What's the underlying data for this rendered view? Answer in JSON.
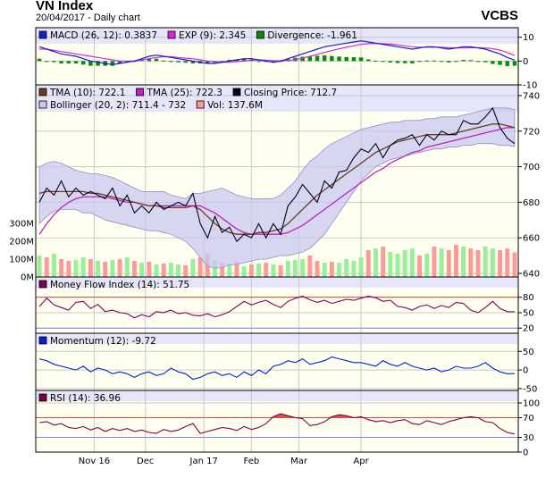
{
  "header": {
    "title": "VN Index",
    "subtitle": "20/04/2017 - Daily chart",
    "broker": "VCBS"
  },
  "colors": {
    "background": "#fffff0",
    "legend_bg": "#e6e6fa",
    "bollinger_band": "#c8c8f0",
    "macd": "#1020cc",
    "exp": "#dd22dd",
    "divergence": "#0a8a0a",
    "tma10": "#6b3b1a",
    "tma25": "#c020c0",
    "close": "#000020",
    "vol_up": "#99ee99",
    "vol_down": "#ff9999",
    "mfi": "#800060",
    "momentum": "#0020dd",
    "rsi": "#800040",
    "ref_line": "#e04040",
    "ref_line2": "#8080ff"
  },
  "chart_data": [
    {
      "type": "line",
      "panel": "macd",
      "legend": [
        {
          "label": "MACD (26, 12): 0.3837",
          "color": "#1020cc"
        },
        {
          "label": "EXP (9): 2.345",
          "color": "#dd22dd"
        },
        {
          "label": "Divergence: -1.961",
          "color": "#0a8a0a"
        }
      ],
      "yticks": [
        "10",
        "0",
        "-10"
      ],
      "ylim": [
        -10,
        14
      ],
      "series": [
        {
          "name": "MACD",
          "values": [
            6,
            5,
            4,
            3,
            2.5,
            2,
            1,
            0,
            -0.5,
            -1,
            -1.5,
            -1,
            -0.5,
            0,
            1,
            2,
            2.5,
            2,
            1.5,
            1,
            0.5,
            0,
            -0.5,
            -1,
            -1,
            -0.5,
            0,
            0.5,
            1,
            1,
            0.5,
            0,
            -0.5,
            0,
            1,
            2,
            3,
            4,
            5,
            6,
            6.5,
            7,
            7.5,
            8,
            8.5,
            8,
            7.5,
            7,
            6.5,
            6,
            5.5,
            5,
            5.5,
            6,
            6,
            5.5,
            5,
            5.5,
            6,
            6,
            5.5,
            5,
            4,
            3,
            1.5,
            0.4
          ]
        },
        {
          "name": "EXP",
          "values": [
            5,
            5,
            4.5,
            4,
            3.5,
            3,
            2.5,
            2,
            1.5,
            1,
            0.5,
            0,
            0,
            0,
            0.5,
            1,
            1.5,
            1.8,
            1.8,
            1.5,
            1.2,
            1,
            0.5,
            0,
            -0.3,
            -0.5,
            -0.5,
            -0.2,
            0,
            0.3,
            0.5,
            0.4,
            0.2,
            0.1,
            0.2,
            0.6,
            1.2,
            2,
            2.8,
            3.6,
            4.4,
            5.1,
            5.8,
            6.4,
            7,
            7.3,
            7.4,
            7.3,
            7.1,
            6.8,
            6.4,
            6,
            5.8,
            5.8,
            5.8,
            5.8,
            5.6,
            5.5,
            5.5,
            5.6,
            5.6,
            5.5,
            5.2,
            4.6,
            3.6,
            2.3
          ]
        },
        {
          "name": "Divergence",
          "values": [
            1,
            0,
            -0.5,
            -1,
            -1,
            -1,
            -1.5,
            -2,
            -2,
            -2,
            -2,
            -1,
            -0.5,
            0,
            0.5,
            1,
            1,
            0.2,
            -0.3,
            -0.5,
            -0.7,
            -1,
            -1,
            -1,
            -0.7,
            0,
            0.5,
            0.7,
            1,
            0.7,
            0,
            -0.4,
            -0.7,
            -0.1,
            0.8,
            1.4,
            1.8,
            2,
            2.2,
            2.4,
            2.1,
            1.9,
            1.7,
            1.6,
            1.5,
            0.7,
            0.1,
            -0.3,
            -0.6,
            -0.8,
            -0.9,
            -1,
            -0.3,
            0.2,
            0.2,
            -0.3,
            -0.6,
            0,
            0.5,
            0.4,
            -0.1,
            -0.5,
            -1.2,
            -1.6,
            -2.1,
            -1.961
          ]
        }
      ]
    },
    {
      "type": "line",
      "panel": "price",
      "legend": [
        {
          "label": "TMA (10): 722.1",
          "color": "#6b3b1a"
        },
        {
          "label": "TMA (25): 722.3",
          "color": "#c020c0"
        },
        {
          "label": "Closing Price: 712.7",
          "color": "#000020"
        },
        {
          "label": "Bollinger (20, 2): 711.4 - 732",
          "color": "#c8c8f0"
        },
        {
          "label": "Vol: 137.6M",
          "color": "#ff9999"
        }
      ],
      "yticks": [
        "740",
        "720",
        "700",
        "680",
        "660",
        "640"
      ],
      "ylim": [
        638,
        746
      ],
      "vol_ticks": [
        "300M",
        "200M",
        "100M",
        "0M"
      ],
      "vol_max": 400,
      "series": [
        {
          "name": "Closing Price",
          "values": [
            680,
            688,
            684,
            692,
            683,
            688,
            684,
            686,
            684,
            682,
            688,
            678,
            684,
            674,
            678,
            674,
            680,
            676,
            678,
            680,
            678,
            685,
            668,
            660,
            672,
            663,
            666,
            658,
            662,
            660,
            668,
            660,
            668,
            662,
            678,
            683,
            690,
            685,
            680,
            692,
            688,
            697,
            698,
            705,
            710,
            708,
            713,
            705,
            712,
            715,
            716,
            718,
            712,
            718,
            715,
            720,
            718,
            718,
            726,
            724,
            724,
            728,
            733,
            722,
            716,
            713
          ]
        },
        {
          "name": "TMA (10)",
          "values": [
            685,
            686,
            686,
            686,
            686,
            686,
            686,
            685,
            685,
            684,
            683,
            682,
            681,
            680,
            679,
            678,
            678,
            677,
            677,
            677,
            677,
            678,
            676,
            672,
            668,
            665,
            663,
            662,
            662,
            662,
            663,
            663,
            664,
            665,
            668,
            672,
            676,
            680,
            684,
            687,
            690,
            693,
            696,
            699,
            702,
            705,
            708,
            710,
            712,
            714,
            715,
            716,
            717,
            718,
            718,
            718,
            718,
            719,
            720,
            721,
            722,
            723,
            724,
            724,
            723,
            722
          ]
        },
        {
          "name": "TMA (25)",
          "values": [
            662,
            668,
            673,
            677,
            680,
            682,
            683,
            683,
            683,
            683,
            682,
            681,
            680,
            680,
            679,
            678,
            678,
            678,
            678,
            678,
            678,
            678,
            678,
            676,
            674,
            671,
            668,
            665,
            663,
            662,
            662,
            662,
            662,
            662,
            663,
            665,
            667,
            670,
            673,
            676,
            679,
            682,
            685,
            688,
            691,
            694,
            697,
            699,
            702,
            704,
            706,
            708,
            709,
            711,
            712,
            713,
            714,
            715,
            716,
            717,
            718,
            719,
            720,
            721,
            722,
            722
          ]
        },
        {
          "name": "Bollinger upper",
          "values": [
            700,
            702,
            703,
            702,
            700,
            698,
            697,
            696,
            696,
            695,
            694,
            692,
            690,
            688,
            686,
            686,
            686,
            686,
            684,
            683,
            682,
            685,
            685,
            686,
            687,
            688,
            686,
            684,
            683,
            682,
            682,
            682,
            682,
            684,
            688,
            692,
            698,
            703,
            706,
            710,
            713,
            715,
            717,
            719,
            721,
            722,
            723,
            724,
            725,
            725,
            726,
            726,
            726,
            727,
            727,
            728,
            728,
            728,
            729,
            730,
            731,
            732,
            733,
            733,
            733,
            732
          ]
        },
        {
          "name": "Bollinger lower",
          "values": [
            668,
            672,
            675,
            676,
            676,
            676,
            674,
            674,
            672,
            670,
            669,
            668,
            667,
            666,
            665,
            664,
            664,
            663,
            662,
            660,
            658,
            654,
            649,
            644,
            643,
            643,
            645,
            645,
            646,
            647,
            648,
            648,
            649,
            650,
            650,
            651,
            652,
            654,
            658,
            662,
            668,
            674,
            680,
            686,
            692,
            696,
            700,
            702,
            704,
            705,
            706,
            707,
            708,
            709,
            710,
            710,
            711,
            711,
            712,
            712,
            713,
            713,
            713,
            712,
            712,
            711.4
          ]
        },
        {
          "name": "Volume",
          "values": [
            120,
            110,
            130,
            100,
            90,
            95,
            110,
            100,
            90,
            85,
            95,
            100,
            110,
            90,
            80,
            85,
            70,
            75,
            80,
            70,
            65,
            100,
            110,
            130,
            90,
            80,
            70,
            85,
            60,
            70,
            75,
            80,
            70,
            65,
            90,
            95,
            100,
            120,
            90,
            80,
            85,
            80,
            100,
            90,
            110,
            150,
            160,
            170,
            140,
            130,
            150,
            160,
            120,
            130,
            170,
            160,
            150,
            180,
            170,
            160,
            150,
            170,
            160,
            150,
            160,
            137.6
          ]
        },
        {
          "name": "Volume direction",
          "values": [
            1,
            0,
            1,
            0,
            0,
            1,
            1,
            0,
            1,
            0,
            1,
            0,
            1,
            0,
            1,
            0,
            1,
            0,
            1,
            1,
            0,
            1,
            0,
            0,
            1,
            0,
            1,
            0,
            1,
            0,
            1,
            0,
            1,
            0,
            1,
            1,
            1,
            0,
            0,
            1,
            0,
            1,
            1,
            1,
            1,
            0,
            1,
            0,
            1,
            1,
            1,
            1,
            0,
            1,
            0,
            1,
            0,
            0,
            1,
            0,
            0,
            1,
            1,
            0,
            0,
            0
          ]
        }
      ]
    },
    {
      "type": "line",
      "panel": "mfi",
      "legend": [
        {
          "label": "Money Flow Index (14): 51.75",
          "color": "#800060"
        }
      ],
      "yticks": [
        "80",
        "50",
        "20"
      ],
      "ylim": [
        10,
        95
      ],
      "ref_lines": [
        80,
        20
      ],
      "series": [
        {
          "name": "Money Flow Index",
          "values": [
            62,
            78,
            65,
            60,
            55,
            70,
            72,
            58,
            66,
            52,
            55,
            50,
            48,
            40,
            46,
            42,
            52,
            50,
            55,
            48,
            50,
            45,
            44,
            48,
            42,
            46,
            52,
            62,
            72,
            65,
            70,
            74,
            66,
            60,
            72,
            78,
            82,
            75,
            70,
            74,
            68,
            72,
            76,
            74,
            78,
            82,
            79,
            72,
            74,
            62,
            60,
            55,
            62,
            65,
            58,
            64,
            60,
            70,
            68,
            55,
            50,
            60,
            72,
            58,
            52,
            51.75
          ]
        }
      ]
    },
    {
      "type": "line",
      "panel": "momentum",
      "legend": [
        {
          "label": "Momentum (12): -9.72",
          "color": "#0020dd"
        }
      ],
      "yticks": [
        "50",
        "0",
        "-50"
      ],
      "ylim": [
        -55,
        65
      ],
      "series": [
        {
          "name": "Momentum",
          "values": [
            30,
            25,
            15,
            10,
            5,
            0,
            10,
            -5,
            5,
            0,
            -10,
            -5,
            -10,
            -20,
            -10,
            -5,
            -15,
            -10,
            5,
            -5,
            -10,
            -25,
            -20,
            -10,
            -5,
            -15,
            -10,
            -20,
            -5,
            -15,
            0,
            -10,
            10,
            15,
            25,
            20,
            30,
            15,
            20,
            25,
            35,
            30,
            25,
            20,
            20,
            15,
            10,
            25,
            15,
            10,
            20,
            10,
            5,
            0,
            5,
            -5,
            0,
            10,
            5,
            5,
            10,
            20,
            5,
            -5,
            -10,
            -9.72
          ]
        }
      ]
    },
    {
      "type": "line",
      "panel": "rsi",
      "legend": [
        {
          "label": "RSI (14): 36.96",
          "color": "#800040"
        }
      ],
      "yticks": [
        "100",
        "70",
        "30",
        "0"
      ],
      "ylim": [
        0,
        100
      ],
      "ref_lines": [
        70,
        30
      ],
      "series": [
        {
          "name": "RSI",
          "values": [
            60,
            62,
            55,
            58,
            50,
            48,
            52,
            45,
            50,
            42,
            48,
            44,
            48,
            42,
            45,
            40,
            38,
            46,
            42,
            45,
            52,
            58,
            38,
            42,
            46,
            50,
            48,
            44,
            52,
            46,
            50,
            58,
            72,
            78,
            74,
            70,
            68,
            54,
            56,
            62,
            72,
            76,
            74,
            70,
            72,
            66,
            62,
            64,
            60,
            64,
            66,
            58,
            56,
            64,
            60,
            56,
            62,
            66,
            70,
            72,
            70,
            62,
            60,
            48,
            40,
            36.96
          ]
        }
      ]
    }
  ],
  "xaxis": {
    "labels": [
      "Nov 16",
      "Dec",
      "Jan 17",
      "Feb",
      "Mar",
      "Apr"
    ],
    "positions": [
      8,
      15,
      23,
      29.5,
      36,
      44.5
    ],
    "count": 66
  }
}
